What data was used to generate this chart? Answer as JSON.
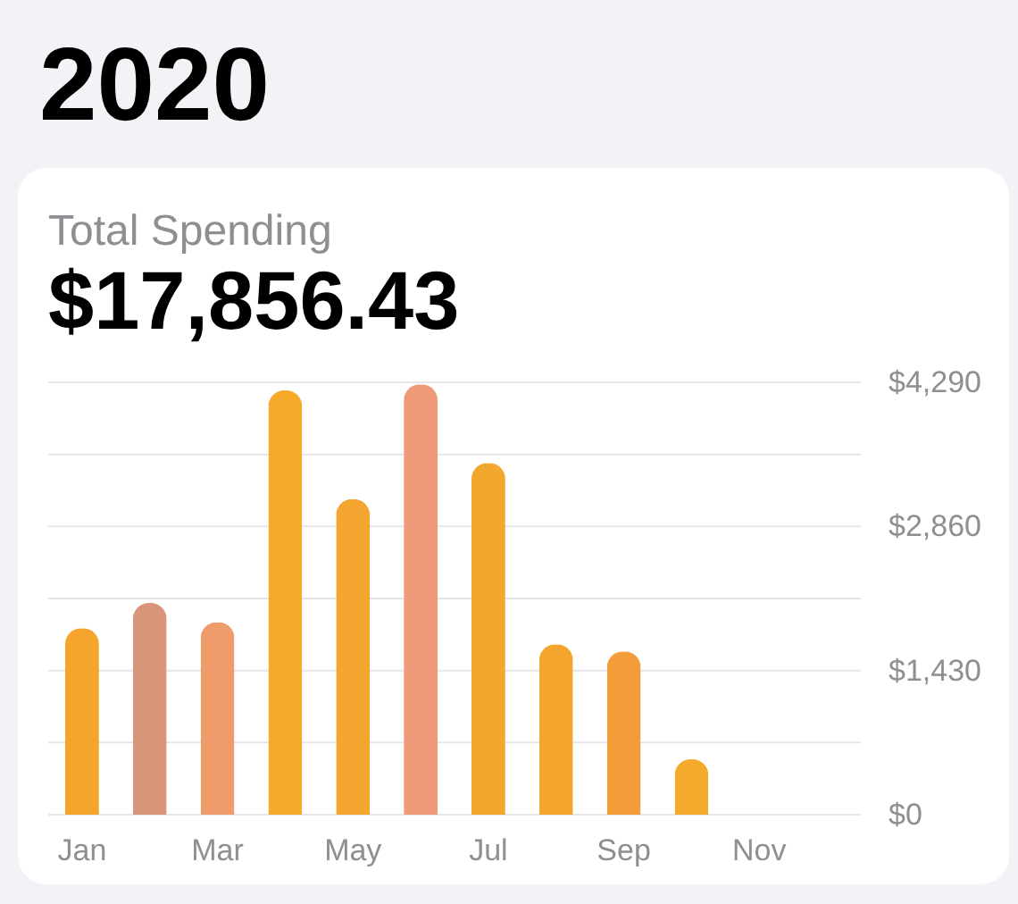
{
  "chart_data": {
    "type": "bar",
    "title": "2020",
    "subtitle": "Total Spending",
    "annotations": [
      "$17,856.43"
    ],
    "categories": [
      "Jan",
      null,
      "Mar",
      null,
      "May",
      null,
      "Jul",
      null,
      "Sep",
      null,
      "Nov",
      null
    ],
    "values": [
      1850,
      2100,
      1910,
      4210,
      3130,
      4270,
      3490,
      1690,
      1620,
      550,
      null,
      null
    ],
    "colors": [
      "#f5a52c",
      "#d9967a",
      "#f09c6a",
      "#f5aa2a",
      "#f5a630",
      "#ef9a78",
      "#f2a82e",
      "#f5a42e",
      "#f49c3a",
      "#f5aa2c",
      null,
      null
    ],
    "ylim": [
      0,
      4290
    ],
    "yticks": [
      {
        "value": 0,
        "label": "$0"
      },
      {
        "value": 715,
        "label": null
      },
      {
        "value": 1430,
        "label": "$1,430"
      },
      {
        "value": 2145,
        "label": null
      },
      {
        "value": 2860,
        "label": "$2,860"
      },
      {
        "value": 3575,
        "label": null
      },
      {
        "value": 4290,
        "label": "$4,290"
      }
    ],
    "grid": "y"
  }
}
